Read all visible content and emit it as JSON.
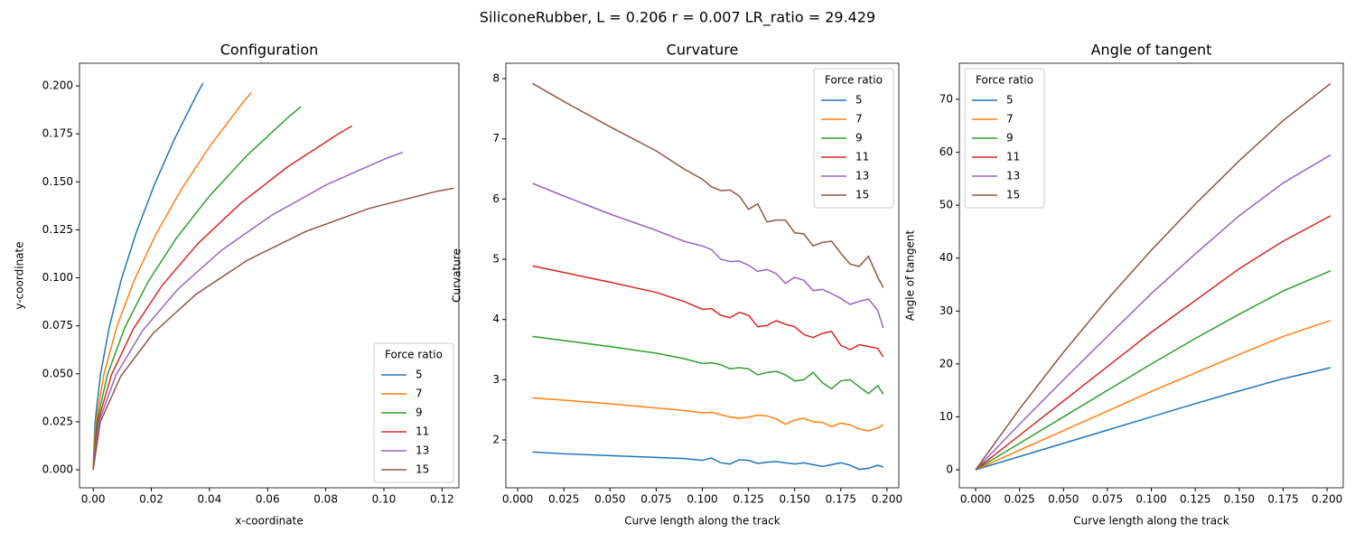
{
  "title": "SiliconeRubber, L = 0.206 r = 0.007 LR_ratio = 29.429",
  "chart_data": [
    {
      "type": "line",
      "title": "Configuration",
      "xlabel": "x-coordinate",
      "ylabel": "y-coordinate",
      "legend_title": "Force ratio",
      "legend": "lower right",
      "xlim": [
        -0.0047,
        0.1258
      ],
      "ylim": [
        -0.0094,
        0.2118
      ],
      "xticks": [
        {
          "value": 0,
          "label": "0.00"
        },
        {
          "value": 0.02,
          "label": "0.02"
        },
        {
          "value": 0.04,
          "label": "0.04"
        },
        {
          "value": 0.06,
          "label": "0.06"
        },
        {
          "value": 0.08,
          "label": "0.08"
        },
        {
          "value": 0.1,
          "label": "0.10"
        },
        {
          "value": 0.12,
          "label": "0.12"
        }
      ],
      "yticks": [
        {
          "value": 0,
          "label": "0.000"
        },
        {
          "value": 0.025,
          "label": "0.025"
        },
        {
          "value": 0.05,
          "label": "0.050"
        },
        {
          "value": 0.075,
          "label": "0.075"
        },
        {
          "value": 0.1,
          "label": "0.100"
        },
        {
          "value": 0.125,
          "label": "0.125"
        },
        {
          "value": 0.15,
          "label": "0.150"
        },
        {
          "value": 0.175,
          "label": "0.175"
        },
        {
          "value": 0.2,
          "label": "0.200"
        }
      ],
      "series": [
        {
          "name": "5",
          "color": "#1f77b4",
          "x": [
            0,
            0.00065,
            0.00255,
            0.0056,
            0.00973,
            0.01488,
            0.02095,
            0.02792,
            0.03576,
            0.0378
          ],
          "values": [
            0,
            0.02499,
            0.04992,
            0.07473,
            0.09939,
            0.12385,
            0.1481,
            0.17211,
            0.19585,
            0.2015
          ]
        },
        {
          "name": "7",
          "color": "#ff7f0e",
          "x": [
            0,
            0.00094,
            0.00371,
            0.00813,
            0.01412,
            0.02155,
            0.0303,
            0.04029,
            0.05148,
            0.0544
          ],
          "values": [
            0,
            0.02498,
            0.04983,
            0.07443,
            0.09871,
            0.12258,
            0.146,
            0.16891,
            0.19126,
            0.1965
          ]
        },
        {
          "name": "9",
          "color": "#2ca02c",
          "x": [
            0,
            0.00126,
            0.00495,
            0.01085,
            0.0188,
            0.02862,
            0.04013,
            0.0532,
            0.06775,
            0.0715
          ],
          "values": [
            0,
            0.02497,
            0.04969,
            0.07399,
            0.09769,
            0.12068,
            0.14287,
            0.16419,
            0.18452,
            0.1892
          ]
        },
        {
          "name": "11",
          "color": "#d62728",
          "x": [
            0,
            0.00161,
            0.00631,
            0.0138,
            0.02383,
            0.03615,
            0.05049,
            0.06663,
            0.08445,
            0.089
          ],
          "values": [
            0,
            0.02495,
            0.0495,
            0.07335,
            0.09625,
            0.118,
            0.13849,
            0.15757,
            0.17511,
            0.1791
          ]
        },
        {
          "name": "13",
          "color": "#9467bd",
          "x": [
            0,
            0.00199,
            0.0078,
            0.017,
            0.02925,
            0.04416,
            0.06132,
            0.08044,
            0.10124,
            0.1065
          ],
          "values": [
            0,
            0.02492,
            0.04924,
            0.07248,
            0.09427,
            0.11434,
            0.13252,
            0.14863,
            0.1625,
            0.1654
          ]
        },
        {
          "name": "15",
          "color": "#8c564b",
          "x": [
            0,
            0.00244,
            0.00954,
            0.0207,
            0.03539,
            0.05304,
            0.07306,
            0.09496,
            0.11831,
            0.1241
          ],
          "values": [
            0,
            0.02488,
            0.04885,
            0.07122,
            0.09145,
            0.10916,
            0.12413,
            0.13618,
            0.14511,
            0.1467
          ]
        }
      ]
    },
    {
      "type": "line",
      "title": "Curvature",
      "xlabel": "Curve length along the track",
      "ylabel": "Curvature",
      "legend_title": "Force ratio",
      "legend": "upper right",
      "xlim": [
        -0.0064,
        0.2064
      ],
      "ylim": [
        1.205,
        8.255
      ],
      "xticks": [
        {
          "value": 0,
          "label": "0.000"
        },
        {
          "value": 0.025,
          "label": "0.025"
        },
        {
          "value": 0.05,
          "label": "0.050"
        },
        {
          "value": 0.075,
          "label": "0.075"
        },
        {
          "value": 0.1,
          "label": "0.100"
        },
        {
          "value": 0.125,
          "label": "0.125"
        },
        {
          "value": 0.15,
          "label": "0.150"
        },
        {
          "value": 0.175,
          "label": "0.175"
        },
        {
          "value": 0.2,
          "label": "0.200"
        }
      ],
      "yticks": [
        2,
        3,
        4,
        5,
        6,
        7,
        8
      ],
      "x": [
        0.008,
        0.025,
        0.05,
        0.075,
        0.09,
        0.1,
        0.105,
        0.11,
        0.115,
        0.12,
        0.125,
        0.13,
        0.135,
        0.14,
        0.145,
        0.15,
        0.155,
        0.16,
        0.165,
        0.17,
        0.175,
        0.18,
        0.185,
        0.19,
        0.195,
        0.198
      ],
      "series": [
        {
          "name": "5",
          "color": "#1f77b4",
          "values": [
            1.8,
            1.77,
            1.74,
            1.71,
            1.69,
            1.66,
            1.7,
            1.62,
            1.6,
            1.67,
            1.66,
            1.61,
            1.63,
            1.64,
            1.62,
            1.6,
            1.62,
            1.59,
            1.56,
            1.59,
            1.62,
            1.58,
            1.51,
            1.53,
            1.58,
            1.55
          ]
        },
        {
          "name": "7",
          "color": "#ff7f0e",
          "values": [
            2.7,
            2.66,
            2.6,
            2.53,
            2.49,
            2.45,
            2.46,
            2.42,
            2.38,
            2.36,
            2.38,
            2.41,
            2.4,
            2.35,
            2.26,
            2.33,
            2.36,
            2.3,
            2.29,
            2.22,
            2.28,
            2.25,
            2.18,
            2.15,
            2.2,
            2.25
          ]
        },
        {
          "name": "9",
          "color": "#2ca02c",
          "values": [
            3.72,
            3.65,
            3.55,
            3.44,
            3.35,
            3.27,
            3.28,
            3.25,
            3.18,
            3.2,
            3.18,
            3.08,
            3.12,
            3.14,
            3.08,
            2.98,
            3.0,
            3.12,
            2.95,
            2.85,
            2.98,
            3.0,
            2.88,
            2.77,
            2.9,
            2.76
          ]
        },
        {
          "name": "11",
          "color": "#d62728",
          "values": [
            4.89,
            4.78,
            4.62,
            4.45,
            4.3,
            4.17,
            4.18,
            4.07,
            4.03,
            4.12,
            4.07,
            3.88,
            3.9,
            3.98,
            3.92,
            3.88,
            3.75,
            3.7,
            3.77,
            3.8,
            3.57,
            3.5,
            3.58,
            3.55,
            3.52,
            3.38
          ]
        },
        {
          "name": "13",
          "color": "#9467bd",
          "values": [
            6.26,
            6.05,
            5.75,
            5.48,
            5.3,
            5.22,
            5.16,
            5.0,
            4.96,
            4.97,
            4.9,
            4.8,
            4.83,
            4.76,
            4.6,
            4.7,
            4.65,
            4.48,
            4.5,
            4.43,
            4.35,
            4.25,
            4.3,
            4.34,
            4.15,
            3.86
          ]
        },
        {
          "name": "15",
          "color": "#8c564b",
          "values": [
            7.92,
            7.62,
            7.2,
            6.8,
            6.5,
            6.33,
            6.2,
            6.14,
            6.15,
            6.05,
            5.83,
            5.92,
            5.62,
            5.65,
            5.65,
            5.44,
            5.42,
            5.22,
            5.28,
            5.3,
            5.1,
            4.92,
            4.88,
            5.05,
            4.7,
            4.53
          ]
        }
      ]
    },
    {
      "type": "line",
      "title": "Angle of tangent",
      "xlabel": "Curve length along the track",
      "ylabel": "Angle of tangent",
      "legend_title": "Force ratio",
      "legend": "upper left",
      "xlim": [
        -0.00925,
        0.2092
      ],
      "ylim": [
        -3.41,
        76.83
      ],
      "xticks": [
        {
          "value": 0,
          "label": "0.000"
        },
        {
          "value": 0.025,
          "label": "0.025"
        },
        {
          "value": 0.05,
          "label": "0.050"
        },
        {
          "value": 0.075,
          "label": "0.075"
        },
        {
          "value": 0.1,
          "label": "0.100"
        },
        {
          "value": 0.125,
          "label": "0.125"
        },
        {
          "value": 0.15,
          "label": "0.150"
        },
        {
          "value": 0.175,
          "label": "0.175"
        },
        {
          "value": 0.2,
          "label": "0.200"
        }
      ],
      "yticks": [
        0,
        10,
        20,
        30,
        40,
        50,
        60,
        70
      ],
      "x": [
        0,
        0.025,
        0.05,
        0.075,
        0.1,
        0.125,
        0.15,
        0.175,
        0.202
      ],
      "series": [
        {
          "name": "5",
          "color": "#1f77b4",
          "values": [
            0,
            2.5,
            5.0,
            7.5,
            10.0,
            12.5,
            14.9,
            17.2,
            19.3
          ]
        },
        {
          "name": "7",
          "color": "#ff7f0e",
          "values": [
            0,
            3.7,
            7.4,
            11.1,
            14.8,
            18.3,
            21.8,
            25.2,
            28.2
          ]
        },
        {
          "name": "9",
          "color": "#2ca02c",
          "values": [
            0,
            5.0,
            10.0,
            15.0,
            20.0,
            24.8,
            29.4,
            33.8,
            37.6
          ]
        },
        {
          "name": "11",
          "color": "#d62728",
          "values": [
            0,
            6.5,
            13.0,
            19.5,
            26.0,
            32.0,
            38.0,
            43.2,
            48.0
          ]
        },
        {
          "name": "13",
          "color": "#9467bd",
          "values": [
            0,
            8.6,
            17.0,
            25.2,
            33.3,
            40.8,
            48.0,
            54.2,
            59.5
          ]
        },
        {
          "name": "15",
          "color": "#8c564b",
          "values": [
            0,
            11.5,
            22.2,
            32.2,
            41.5,
            50.2,
            58.4,
            66.0,
            73.0
          ]
        }
      ]
    }
  ]
}
